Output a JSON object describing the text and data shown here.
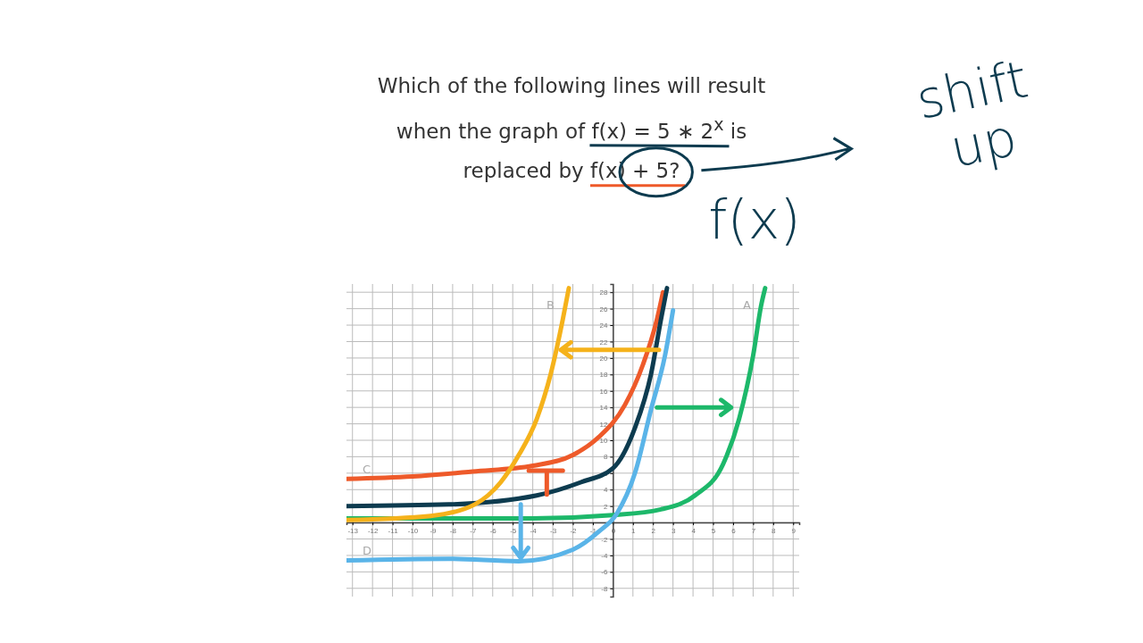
{
  "chart_data": {
    "type": "line",
    "title": "Which of the following lines will result when the graph of f(x) = 5 ∗ 2$^{x}$ is replaced by f(x) + 5?",
    "annotations": [
      "shift up",
      "f(x)"
    ],
    "xlim": [
      -13.3,
      9.3
    ],
    "ylim": [
      -9,
      29
    ],
    "xticks": [
      -13,
      -12,
      -11,
      -10,
      -9,
      -8,
      -7,
      -6,
      -5,
      -4,
      -3,
      -2,
      -1,
      0,
      1,
      2,
      3,
      4,
      5,
      6,
      7,
      8,
      9
    ],
    "yticks": [
      -8,
      -6,
      -4,
      -2,
      {
        "value": 0,
        "label": null
      },
      2,
      4,
      6,
      8,
      10,
      12,
      14,
      16,
      18,
      20,
      22,
      24,
      26,
      28
    ],
    "grid": true,
    "series": [
      {
        "name": "C",
        "color": "#ee5a2a",
        "x": [
          -13.3,
          -10,
          -7,
          -4,
          -2,
          -0.7,
          0.6,
          1.5,
          2.2,
          2.5
        ],
        "values": [
          5.3,
          5.6,
          6.2,
          6.9,
          8.2,
          10.4,
          14.3,
          19.2,
          24.7,
          28
        ]
      },
      {
        "color": "#0d3b4f",
        "x": [
          -13.3,
          -8.2,
          -3.8,
          -1.6,
          0,
          1.1,
          1.9,
          2.4,
          2.7
        ],
        "values": [
          2,
          2.2,
          3.3,
          4.9,
          6.6,
          11.5,
          18,
          24.7,
          28.5
        ]
      },
      {
        "name": "A",
        "color": "#1db86a",
        "x": [
          -13.3,
          -4,
          0,
          2.4,
          4.1,
          5.5,
          6.3,
          7,
          7.4,
          7.6
        ],
        "values": [
          0.5,
          0.5,
          0.9,
          1.6,
          3.3,
          7.1,
          12.6,
          20.3,
          26.4,
          28.5
        ]
      },
      {
        "name": "B",
        "color": "#f5b21b",
        "x": [
          -13.3,
          -9.1,
          -6.9,
          -5.6,
          -4.7,
          -3.8,
          -3.1,
          -2.5,
          -2.2
        ],
        "values": [
          0.3,
          0.8,
          2.2,
          4.9,
          8.2,
          12.6,
          18.1,
          24.7,
          28.5
        ]
      },
      {
        "name": "D",
        "color": "#5ab4e8",
        "x": [
          -13.3,
          -8.2,
          -4.7,
          -2,
          -0.7,
          0.2,
          1.1,
          1.9,
          2.6,
          3
        ],
        "values": [
          -4.6,
          -4.4,
          -4.7,
          -3.3,
          -1.1,
          1.1,
          6,
          13.7,
          20.3,
          25.8
        ]
      }
    ]
  }
}
